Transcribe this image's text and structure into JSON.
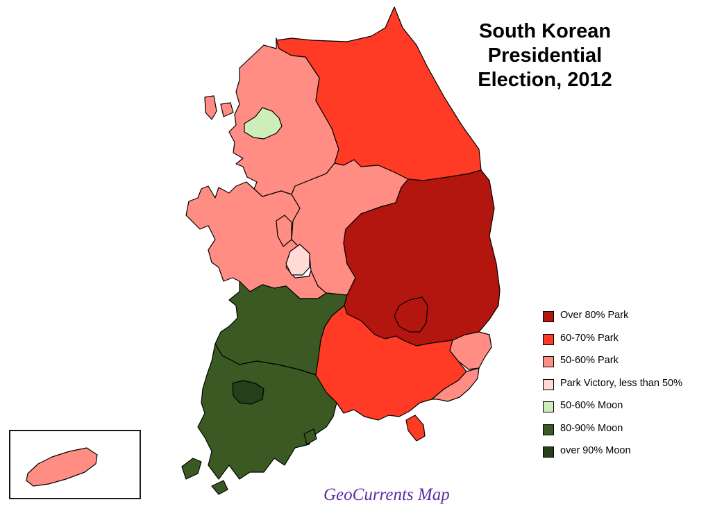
{
  "title_lines": [
    "South Korean",
    "Presidential",
    "Election, 2012"
  ],
  "legend": [
    {
      "label": "Over 80% Park",
      "color": "#b3150f"
    },
    {
      "label": "60-70% Park",
      "color": "#ff3b25"
    },
    {
      "label": "50-60% Park",
      "color": "#ff8d84"
    },
    {
      "label": "Park Victory, less than 50%",
      "color": "#ffdad6"
    },
    {
      "label": "50-60% Moon",
      "color": "#cdeeb8"
    },
    {
      "label": "80-90% Moon",
      "color": "#3b5a23"
    },
    {
      "label": "over 90% Moon",
      "color": "#24401a"
    }
  ],
  "regions": {
    "gyeonggi": {
      "category": "50-60% Park"
    },
    "seoul": {
      "category": "50-60% Moon"
    },
    "gangwon": {
      "category": "60-70% Park"
    },
    "chungbuk": {
      "category": "50-60% Park"
    },
    "chungnam": {
      "category": "50-60% Park"
    },
    "sejong": {
      "category": "50-60% Park"
    },
    "daejeon": {
      "category": "Park Victory, less than 50%"
    },
    "gyeongbuk": {
      "category": "Over 80% Park"
    },
    "daegu": {
      "category": "Over 80% Park"
    },
    "jeonbuk": {
      "category": "80-90% Moon"
    },
    "jeonnam": {
      "category": "80-90% Moon"
    },
    "gwangju": {
      "category": "over 90% Moon"
    },
    "gyeongnam": {
      "category": "60-70% Park"
    },
    "busan": {
      "category": "50-60% Park"
    },
    "ulsan": {
      "category": "50-60% Park"
    },
    "jeju": {
      "category": "50-60% Park"
    }
  },
  "credit": "GeoCurrents Map"
}
